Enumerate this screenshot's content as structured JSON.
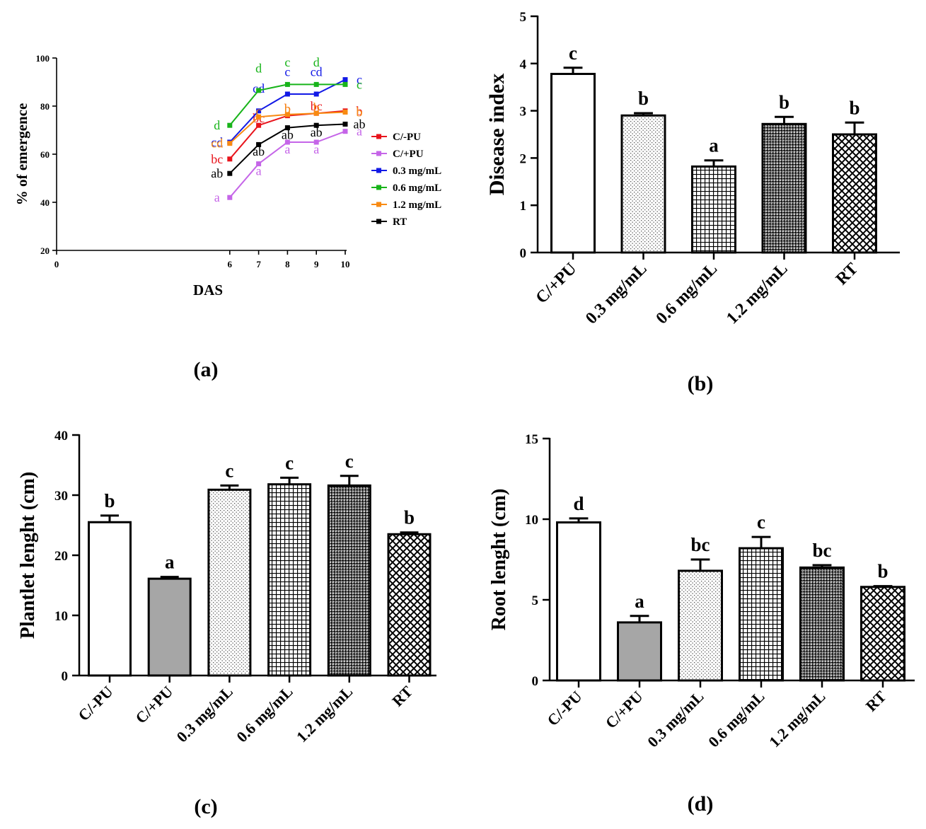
{
  "figure_labels": {
    "a": "(a)",
    "b": "(b)",
    "c": "(c)",
    "d": "(d)"
  },
  "chart_data": [
    {
      "id": "a",
      "type": "line",
      "xlabel": "DAS",
      "ylabel": "% of emergence",
      "xlim": [
        0,
        10
      ],
      "ylim": [
        20,
        100
      ],
      "xticks": [
        0,
        6,
        7,
        8,
        9,
        10
      ],
      "yticks": [
        20,
        40,
        60,
        80,
        100
      ],
      "x": [
        6,
        7,
        8,
        9,
        10
      ],
      "legend_position": "right",
      "series": [
        {
          "name": "C/-PU",
          "color": "#e8141c",
          "values": [
            58,
            72,
            76,
            77,
            78
          ],
          "labels": [
            "bc",
            "bc",
            "b",
            "bc",
            "b"
          ]
        },
        {
          "name": "C/+PU",
          "color": "#c565e8",
          "values": [
            42,
            56,
            65,
            65,
            69.5
          ],
          "labels": [
            "a",
            "a",
            "a",
            "a",
            "a"
          ]
        },
        {
          "name": "0.3 mg/mL",
          "color": "#1219e6",
          "values": [
            65,
            78,
            85,
            85,
            91
          ],
          "labels": [
            "cd",
            "cd",
            "c",
            "cd",
            "c"
          ]
        },
        {
          "name": "0.6 mg/mL",
          "color": "#18b41a",
          "values": [
            72,
            86.5,
            89,
            89,
            89
          ],
          "labels": [
            "d",
            "d",
            "c",
            "d",
            "c"
          ]
        },
        {
          "name": "1.2 mg/mL",
          "color": "#f88a12",
          "values": [
            64.5,
            75.5,
            76.5,
            77,
            77.5
          ],
          "labels": [
            "cd",
            "c",
            "b",
            "b",
            "b"
          ]
        },
        {
          "name": "RT",
          "color": "#000000",
          "values": [
            52,
            64,
            71,
            72,
            72.5
          ],
          "labels": [
            "ab",
            "ab",
            "ab",
            "ab",
            "ab"
          ]
        }
      ]
    },
    {
      "id": "b",
      "type": "bar",
      "xlabel": "",
      "ylabel": "Disease index",
      "ylim": [
        0,
        5
      ],
      "yticks": [
        0,
        1,
        2,
        3,
        4,
        5
      ],
      "categories": [
        "C/+PU",
        "0.3 mg/mL",
        "0.6 mg/mL",
        "1.2 mg/mL",
        "RT"
      ],
      "values": [
        3.78,
        2.9,
        1.82,
        2.72,
        2.5
      ],
      "errors": [
        0.13,
        0.05,
        0.13,
        0.15,
        0.25
      ],
      "patterns": [
        "white",
        "dots",
        "grid",
        "dense",
        "cross"
      ],
      "labels": [
        "c",
        "b",
        "a",
        "b",
        "b"
      ]
    },
    {
      "id": "c",
      "type": "bar",
      "xlabel": "",
      "ylabel": "Plantlet lenght (cm)",
      "ylim": [
        0,
        40
      ],
      "yticks": [
        0,
        10,
        20,
        30,
        40
      ],
      "categories": [
        "C/-PU",
        "C/+PU",
        "0.3 mg/mL",
        "0.6 mg/mL",
        "1.2 mg/mL",
        "RT"
      ],
      "values": [
        25.5,
        16.1,
        30.9,
        31.8,
        31.6,
        23.5
      ],
      "errors": [
        1.1,
        0.3,
        0.7,
        1.1,
        1.6,
        0.3
      ],
      "patterns": [
        "white",
        "gray",
        "dots",
        "grid",
        "dense",
        "cross"
      ],
      "labels": [
        "b",
        "a",
        "c",
        "c",
        "c",
        "b"
      ]
    },
    {
      "id": "d",
      "type": "bar",
      "xlabel": "",
      "ylabel": "Root lenght (cm)",
      "ylim": [
        0,
        15
      ],
      "yticks": [
        0,
        5,
        10,
        15
      ],
      "categories": [
        "C/-PU",
        "C/+PU",
        "0.3 mg/mL",
        "0.6 mg/mL",
        "1.2 mg/mL",
        "RT"
      ],
      "values": [
        9.8,
        3.6,
        6.8,
        8.2,
        7.0,
        5.8
      ],
      "errors": [
        0.25,
        0.4,
        0.7,
        0.7,
        0.15,
        0.05
      ],
      "patterns": [
        "white",
        "gray",
        "dots",
        "grid",
        "dense",
        "cross"
      ],
      "labels": [
        "d",
        "a",
        "bc",
        "c",
        "bc",
        "b"
      ]
    }
  ]
}
